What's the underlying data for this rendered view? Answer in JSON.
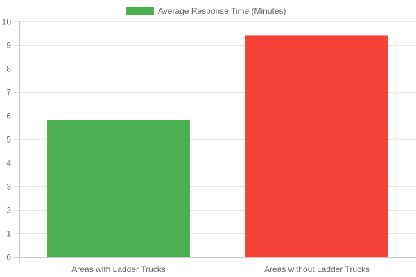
{
  "chart_data": {
    "type": "bar",
    "categories": [
      "Areas with Ladder Trucks",
      "Areas without Ladder Trucks"
    ],
    "series": [
      {
        "name": "Average Response Time (Minutes)",
        "values": [
          5.8,
          9.4
        ],
        "colors": [
          "#4caf50",
          "#f44336"
        ]
      }
    ],
    "ylim": [
      0,
      10
    ],
    "y_ticks": [
      0,
      1,
      2,
      3,
      4,
      5,
      6,
      7,
      8,
      9,
      10
    ],
    "grid": true,
    "legend_position": "top-center",
    "legend_color": "#4caf50"
  }
}
